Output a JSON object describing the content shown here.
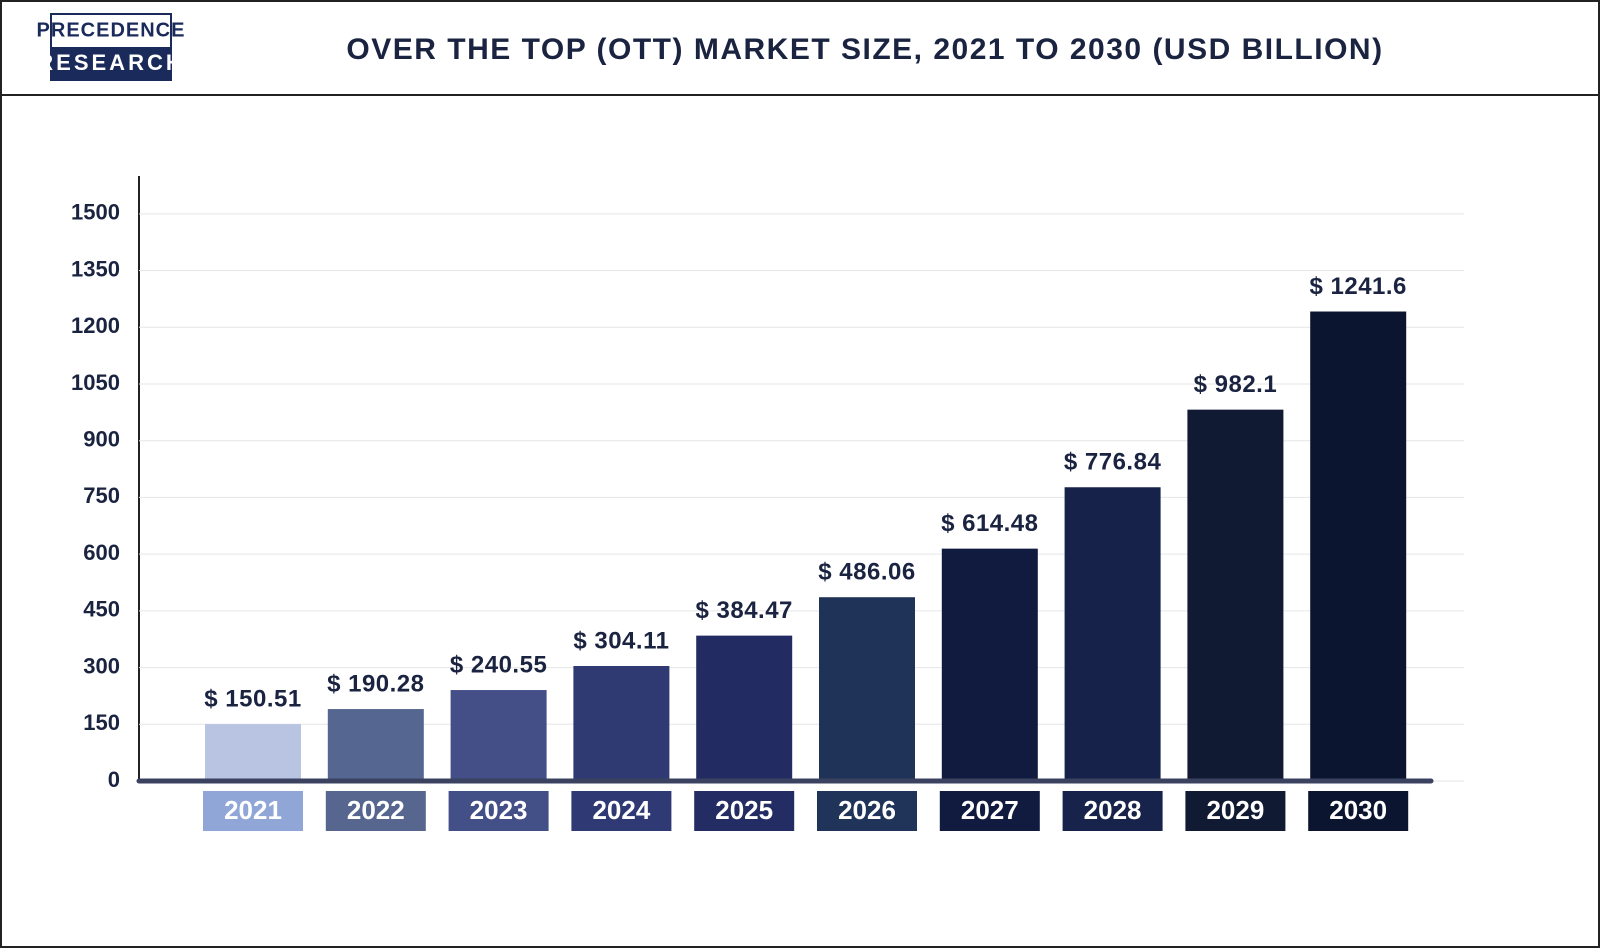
{
  "logo": {
    "line1": "PRECEDENCE",
    "line2": "RESEARCH"
  },
  "chart_data": {
    "type": "bar",
    "title": "OVER THE TOP (OTT) MARKET SIZE, 2021 TO 2030 (USD BILLION)",
    "categories": [
      "2021",
      "2022",
      "2023",
      "2024",
      "2025",
      "2026",
      "2027",
      "2028",
      "2029",
      "2030"
    ],
    "values": [
      150.51,
      190.28,
      240.55,
      304.11,
      384.47,
      486.06,
      614.48,
      776.84,
      982.1,
      1241.6
    ],
    "value_labels": [
      "$ 150.51",
      "$ 190.28",
      "$ 240.55",
      "$ 304.11",
      "$ 384.47",
      "$ 486.06",
      "$ 614.48",
      "$ 776.84",
      "$ 982.1",
      "$ 1241.6"
    ],
    "colors": [
      "#b8c4e2",
      "#556690",
      "#434f86",
      "#2f3a73",
      "#232c62",
      "#1f3257",
      "#111b3f",
      "#16224a",
      "#111a33",
      "#0c1530"
    ],
    "category_colors": [
      "#8fa6d6",
      "#56668f",
      "#434f87",
      "#2f3a74",
      "#242d63",
      "#203358",
      "#111b3f",
      "#17234b",
      "#111a33",
      "#0c1530"
    ],
    "ylim": [
      0,
      1600
    ],
    "yticks": [
      0,
      150,
      300,
      450,
      600,
      750,
      900,
      1050,
      1200,
      1350,
      1500
    ],
    "grid": true
  }
}
